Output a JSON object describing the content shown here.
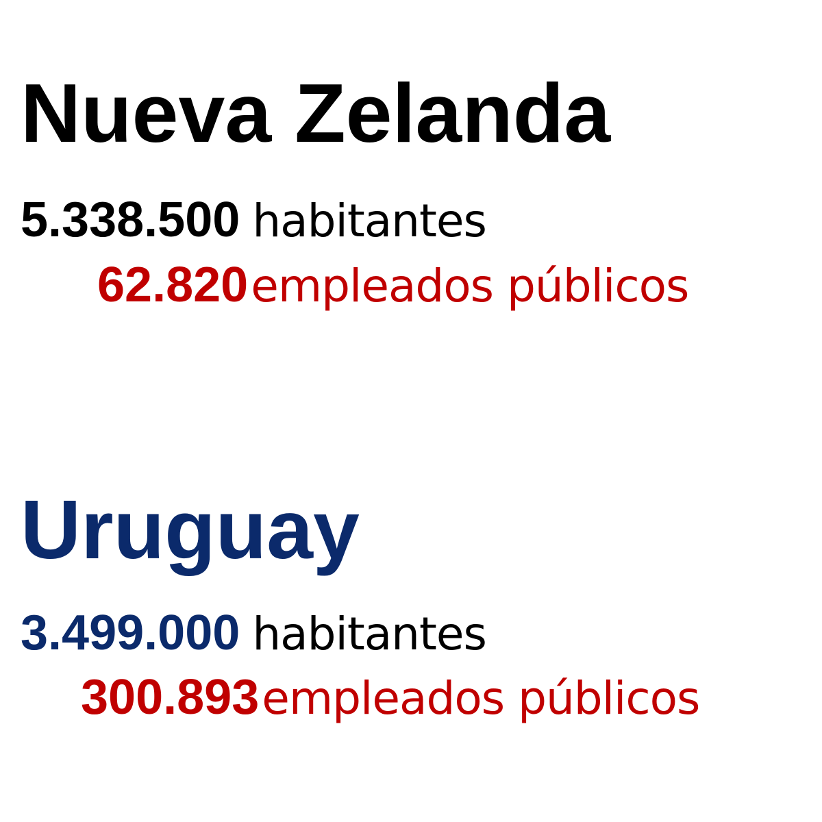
{
  "colors": {
    "nz_title": "#000000",
    "uy_title": "#0b2a6b",
    "habitantes_number_nz": "#000000",
    "habitantes_number_uy": "#0b2a6b",
    "habitantes_label": "#000000",
    "empleados": "#c00000"
  },
  "countries": [
    {
      "name": "Nueva Zelanda",
      "population": "5.338.500",
      "population_label": "habitantes",
      "employees": "62.820",
      "employees_label": "empleados públicos"
    },
    {
      "name": "Uruguay",
      "population": "3.499.000",
      "population_label": "habitantes",
      "employees": "300.893",
      "employees_label": "empleados públicos"
    }
  ]
}
